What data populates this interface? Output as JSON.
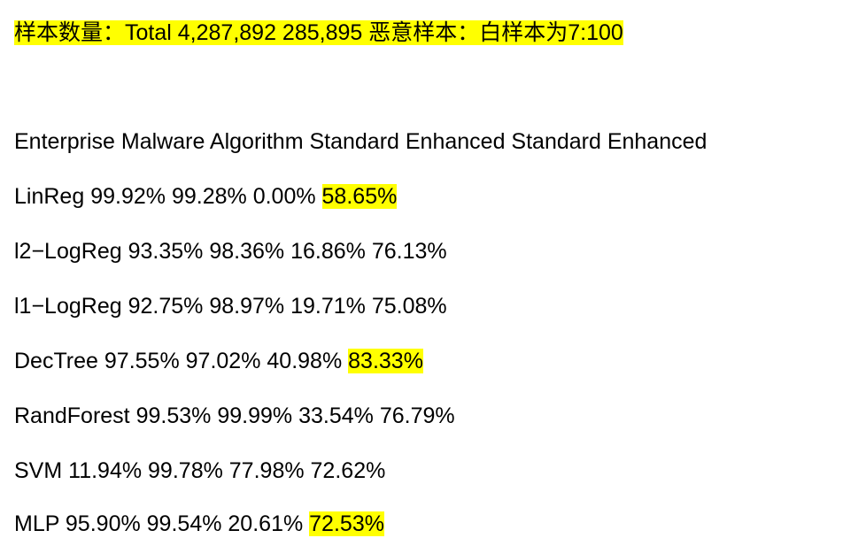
{
  "summary": "样本数量：Total 4,287,892 285,895 恶意样本：白样本为7:100",
  "header": "Enterprise Malware Algorithm Standard Enhanced Standard Enhanced",
  "rows": [
    {
      "name": "LinReg",
      "v1": "99.92%",
      "v2": "99.28%",
      "v3": "0.00%",
      "v4": "58.65%",
      "v4_highlight": true
    },
    {
      "name": "l2−LogReg",
      "v1": "93.35%",
      "v2": "98.36%",
      "v3": "16.86%",
      "v4": "76.13%",
      "v4_highlight": false
    },
    {
      "name": "l1−LogReg",
      "v1": "92.75%",
      "v2": "98.97%",
      "v3": "19.71%",
      "v4": "75.08%",
      "v4_highlight": false
    },
    {
      "name": "DecTree",
      "v1": "97.55%",
      "v2": "97.02%",
      "v3": "40.98%",
      "v4": "83.33%",
      "v4_highlight": true
    },
    {
      "name": "RandForest",
      "v1": "99.53%",
      "v2": "99.99%",
      "v3": "33.54%",
      "v4": "76.79%",
      "v4_highlight": false
    },
    {
      "name": "SVM",
      "v1": "11.94%",
      "v2": "99.78%",
      "v3": "77.98%",
      "v4": "72.62%",
      "v4_highlight": false
    },
    {
      "name": "MLP",
      "v1": "95.90%",
      "v2": "99.54%",
      "v3": "20.61%",
      "v4": "72.53%",
      "v4_highlight": true
    }
  ],
  "colors": {
    "highlight": "#ffff00",
    "text": "#000000",
    "background": "#ffffff"
  }
}
